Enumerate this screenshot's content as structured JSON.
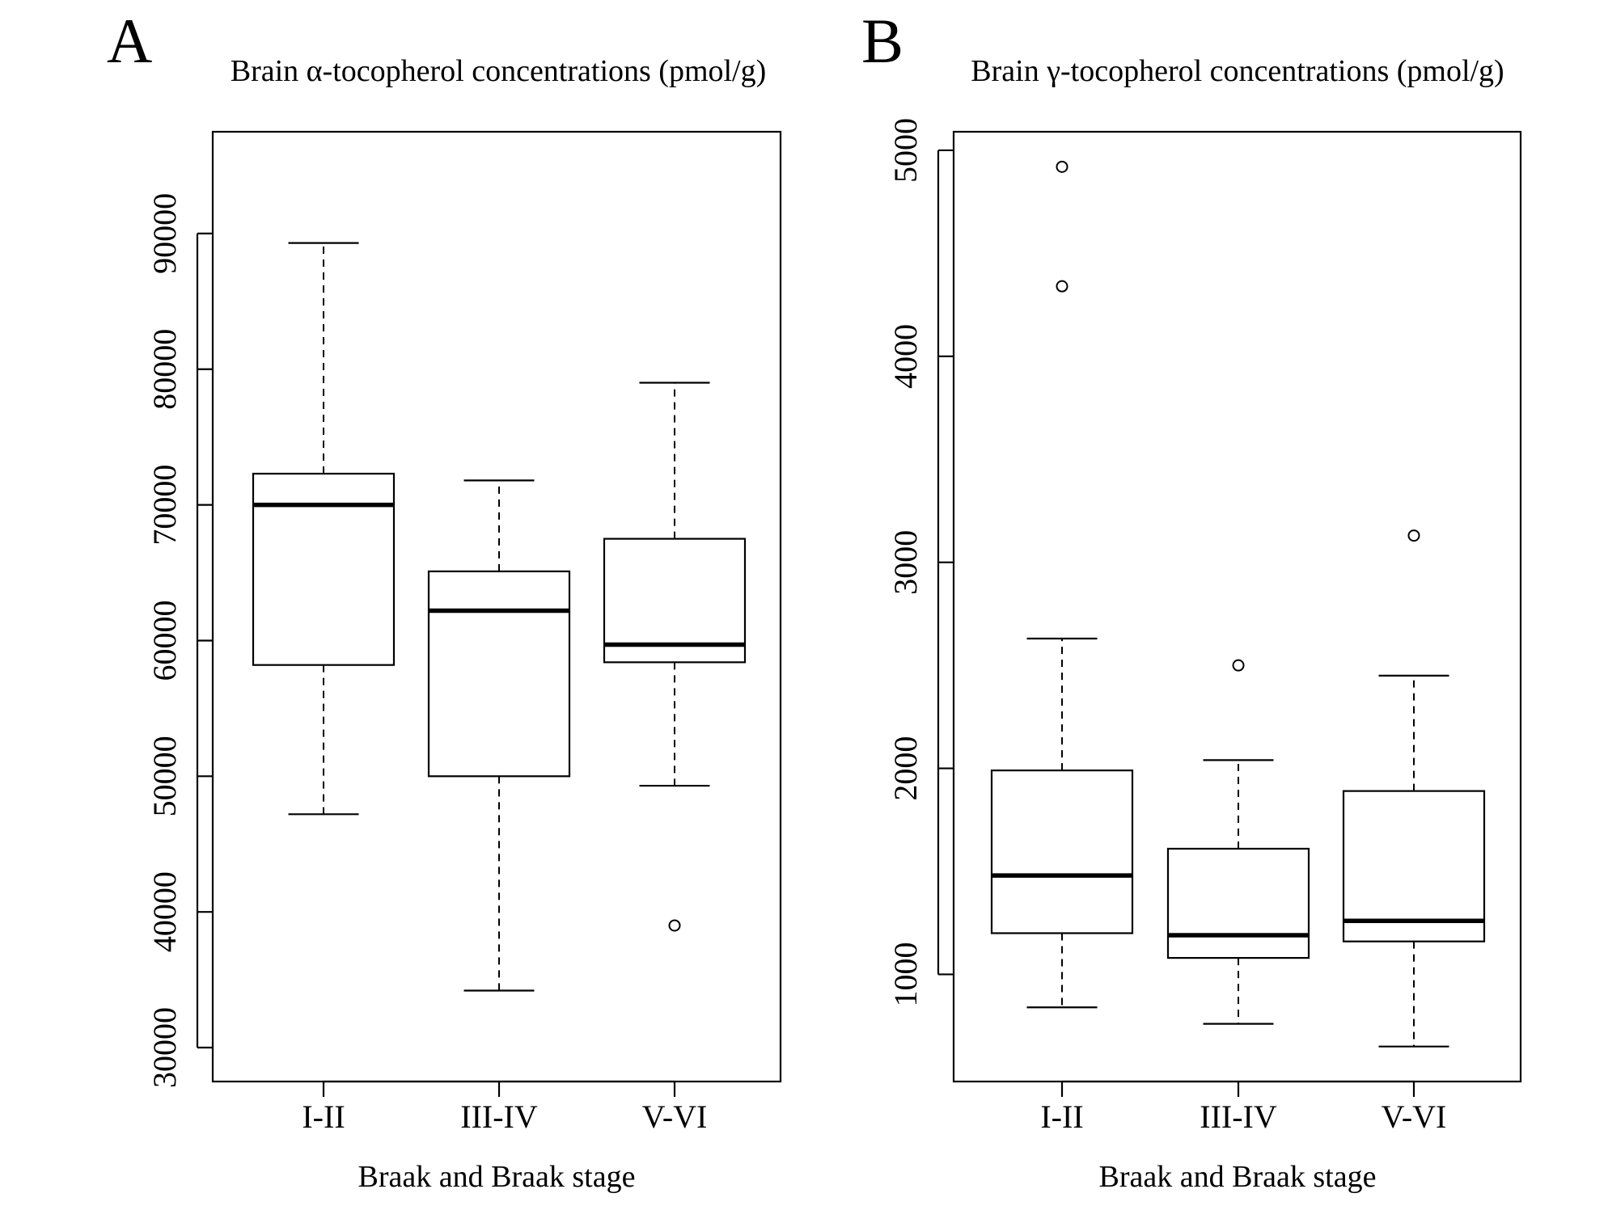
{
  "chart_data": [
    {
      "type": "boxplot",
      "panel": "A",
      "title": "Brain α-tocopherol concentrations (pmol/g)",
      "xlabel": "Braak and Braak stage",
      "ylabel": "",
      "categories": [
        "I-II",
        "III-IV",
        "V-VI"
      ],
      "ylim": [
        27500,
        97500
      ],
      "yticks": [
        30000,
        40000,
        50000,
        60000,
        70000,
        80000,
        90000
      ],
      "ytick_labels": [
        "30000",
        "40000",
        "50000",
        "60000",
        "70000",
        "80000",
        "90000"
      ],
      "boxes": [
        {
          "category": "I-II",
          "whisker_low": 47200,
          "q1": 58200,
          "median": 70000,
          "q3": 72300,
          "whisker_high": 89300,
          "outliers": []
        },
        {
          "category": "III-IV",
          "whisker_low": 34200,
          "q1": 50000,
          "median": 62200,
          "q3": 65100,
          "whisker_high": 71800,
          "outliers": []
        },
        {
          "category": "V-VI",
          "whisker_low": 49300,
          "q1": 58400,
          "median": 59700,
          "q3": 67500,
          "whisker_high": 79000,
          "outliers": [
            39000
          ]
        }
      ]
    },
    {
      "type": "boxplot",
      "panel": "B",
      "title": "Brain γ-tocopherol concentrations (pmol/g)",
      "xlabel": "Braak and Braak stage",
      "ylabel": "",
      "categories": [
        "I-II",
        "III-IV",
        "V-VI"
      ],
      "ylim": [
        480,
        5090
      ],
      "yticks": [
        1000,
        2000,
        3000,
        4000,
        5000
      ],
      "ytick_labels": [
        "1000",
        "2000",
        "3000",
        "4000",
        "5000"
      ],
      "boxes": [
        {
          "category": "I-II",
          "whisker_low": 840,
          "q1": 1200,
          "median": 1480,
          "q3": 1990,
          "whisker_high": 2630,
          "outliers": [
            4920,
            4340
          ]
        },
        {
          "category": "III-IV",
          "whisker_low": 760,
          "q1": 1080,
          "median": 1190,
          "q3": 1610,
          "whisker_high": 2040,
          "outliers": [
            2500
          ]
        },
        {
          "category": "V-VI",
          "whisker_low": 650,
          "q1": 1160,
          "median": 1260,
          "q3": 1890,
          "whisker_high": 2450,
          "outliers": [
            3130
          ]
        }
      ]
    }
  ]
}
